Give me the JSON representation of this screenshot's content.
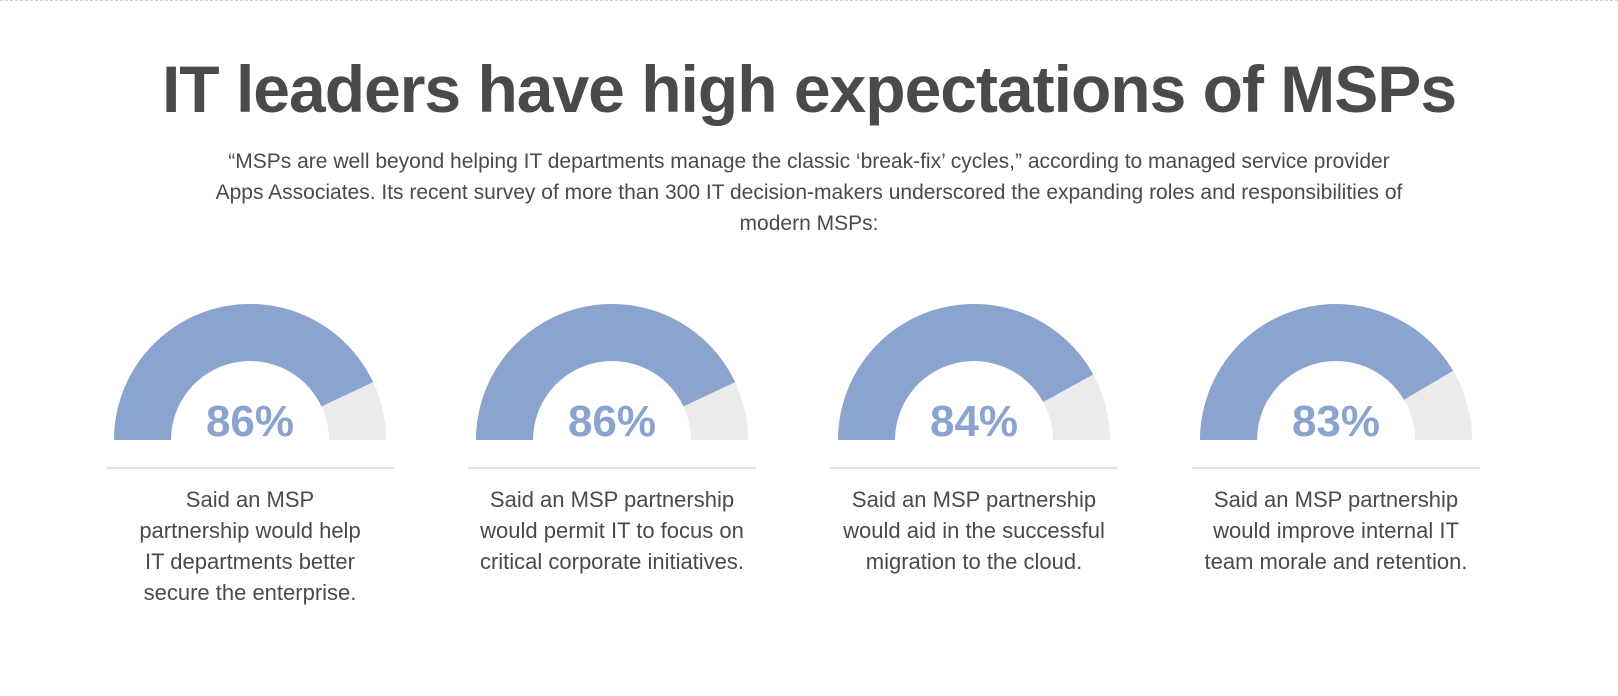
{
  "title": "IT leaders have high expectations of MSPs",
  "intro": "“MSPs are well beyond helping IT departments manage the classic ‘break-fix’ cycles,” according to managed service provider Apps Associates. Its recent survey of more than 300 IT decision-makers underscored the expanding roles and responsibilities of modern MSPs:",
  "colors": {
    "fill": "#8aa3cf",
    "track": "#ebebeb",
    "text": "#4a4a4c"
  },
  "chart_data": {
    "type": "gauge",
    "unit": "%",
    "max": 100,
    "items": [
      {
        "value": 86,
        "label": "86%",
        "caption": "Said an MSP partnership would help IT departments better secure the enterprise."
      },
      {
        "value": 86,
        "label": "86%",
        "caption": "Said an MSP partnership would permit IT to focus on critical corporate initiatives."
      },
      {
        "value": 84,
        "label": "84%",
        "caption": "Said an MSP partnership would aid in the successful migration to the cloud."
      },
      {
        "value": 83,
        "label": "83%",
        "caption": "Said an MSP partnership would improve internal IT team morale and retention."
      }
    ]
  }
}
